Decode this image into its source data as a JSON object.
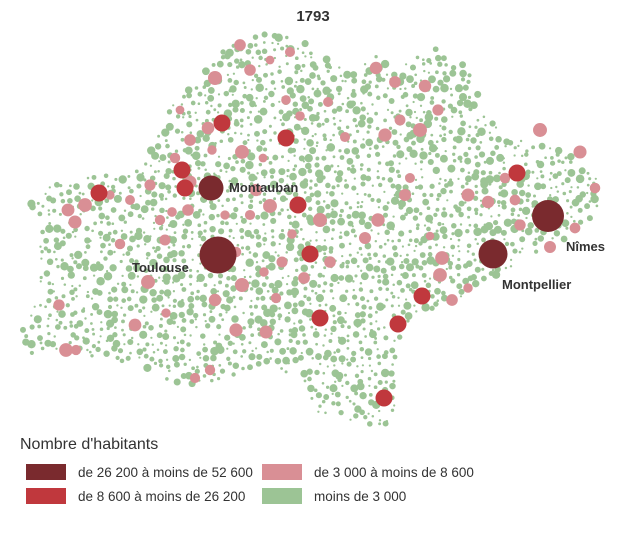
{
  "title": "1793",
  "cities": [
    {
      "key": "montauban",
      "name": "Montauban"
    },
    {
      "key": "toulouse",
      "name": "Toulouse"
    },
    {
      "key": "nimes",
      "name": "Nîmes"
    },
    {
      "key": "montpellier",
      "name": "Montpellier"
    }
  ],
  "legend": {
    "title": "Nombre d'habitants",
    "classes": [
      {
        "label": "de 26 200 à moins de 52 600",
        "color": "#7a2a2e"
      },
      {
        "label": "de 8 600 à moins de 26 200",
        "color": "#c0383d"
      },
      {
        "label": "de 3 000 à moins de 8 600",
        "color": "#d98f95"
      },
      {
        "label": "moins de 3 000",
        "color": "#9cc495"
      }
    ]
  }
}
